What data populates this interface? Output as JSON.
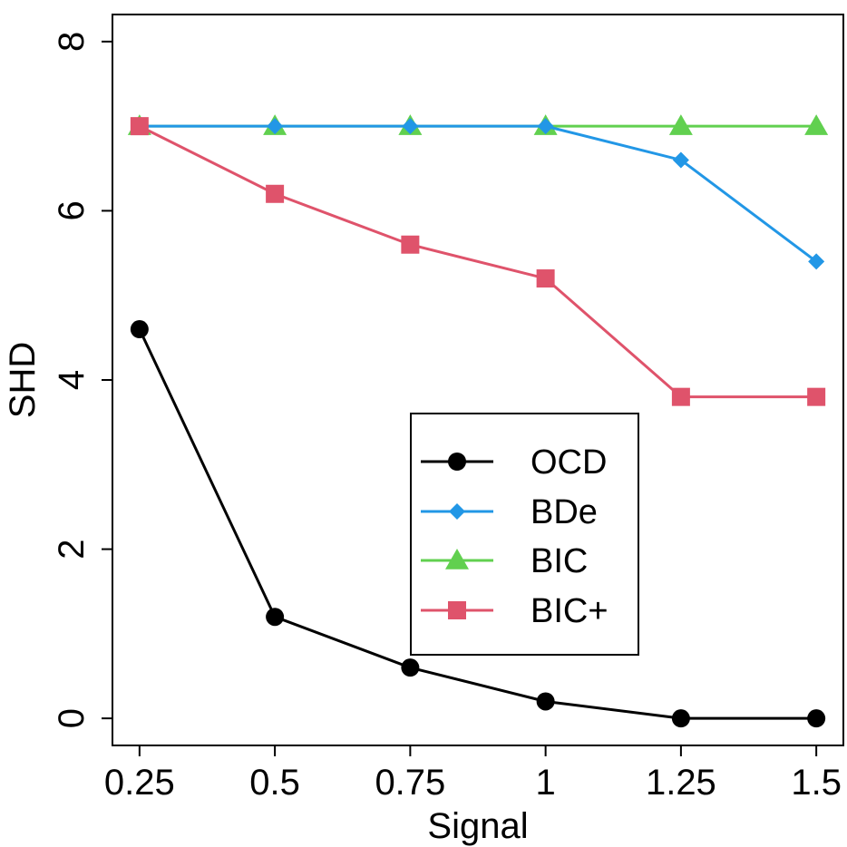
{
  "chart_data": {
    "type": "line",
    "title": "",
    "xlabel": "Signal",
    "ylabel": "SHD",
    "x": [
      0.25,
      0.5,
      0.75,
      1,
      1.25,
      1.5
    ],
    "x_tick_labels": [
      "0.25",
      "0.5",
      "0.75",
      "1",
      "1.25",
      "1.5"
    ],
    "y_ticks": [
      0,
      2,
      4,
      6,
      8
    ],
    "y_tick_labels": [
      "0",
      "2",
      "4",
      "6",
      "8"
    ],
    "xlim": [
      0.2,
      1.55
    ],
    "ylim": [
      -0.32,
      8.32
    ],
    "grid": false,
    "legend_position": "bottom-right",
    "series": [
      {
        "name": "OCD",
        "values": [
          4.6,
          1.2,
          0.6,
          0.2,
          0,
          0
        ],
        "color": "#000000",
        "marker": "circle"
      },
      {
        "name": "BDe",
        "values": [
          7,
          7,
          7,
          7,
          6.6,
          5.4
        ],
        "color": "#2297E6",
        "marker": "diamond"
      },
      {
        "name": "BIC",
        "values": [
          7,
          7,
          7,
          7,
          7,
          7
        ],
        "color": "#61D04F",
        "marker": "triangle"
      },
      {
        "name": "BIC+",
        "values": [
          7,
          6.2,
          5.6,
          5.2,
          3.8,
          3.8
        ],
        "color": "#DF536B",
        "marker": "square"
      }
    ]
  }
}
